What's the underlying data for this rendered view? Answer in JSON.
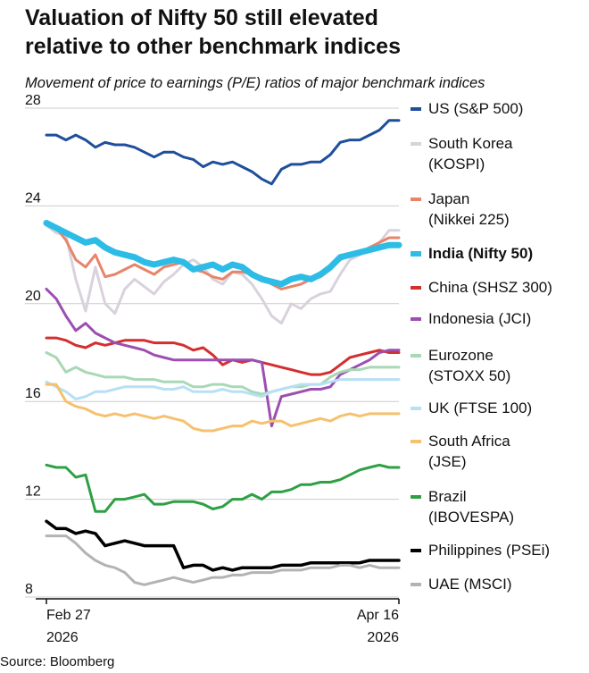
{
  "header": {
    "title_line1": "Valuation of Nifty 50 still elevated",
    "title_line2": "relative to other benchmark indices",
    "subtitle": "Movement of price to earnings (P/E) ratios of major benchmark indices"
  },
  "footer": {
    "source": "Source: Bloomberg"
  },
  "chart_data": {
    "type": "line",
    "title": "Valuation of Nifty 50 still elevated relative to other benchmark indices",
    "subtitle": "Movement of price to earnings (P/E) ratios of major benchmark indices",
    "xlabel": "",
    "ylabel": "",
    "ylim": [
      8,
      28
    ],
    "yticks": [
      8,
      12,
      16,
      20,
      24,
      28
    ],
    "grid": "horizontal",
    "x_tick_labels": [
      {
        "line1": "Feb 27",
        "line2": "2026"
      },
      {
        "line1": "Apr 16",
        "line2": "2026"
      }
    ],
    "legend_position": "right",
    "source": "Source: Bloomberg",
    "series": [
      {
        "name": "US (S&P 500)",
        "legend_lines": [
          "US (S&P 500)"
        ],
        "color": "#1f4e9c",
        "width": 3,
        "bold": false,
        "values": [
          26.9,
          26.9,
          26.7,
          26.9,
          26.7,
          26.4,
          26.6,
          26.5,
          26.5,
          26.4,
          26.2,
          26.0,
          26.2,
          26.2,
          26.0,
          25.9,
          25.6,
          25.8,
          25.7,
          25.8,
          25.6,
          25.4,
          25.1,
          24.9,
          25.5,
          25.7,
          25.7,
          25.8,
          25.8,
          26.1,
          26.6,
          26.7,
          26.7,
          26.9,
          27.1,
          27.5,
          27.5
        ]
      },
      {
        "name": "South Korea (KOSPI)",
        "legend_lines": [
          "South Korea",
          "(KOSPI)"
        ],
        "color": "#d9d2dc",
        "width": 3,
        "bold": false,
        "values": [
          23.2,
          22.9,
          22.8,
          21.0,
          19.7,
          21.5,
          20.0,
          19.6,
          20.6,
          21.0,
          20.7,
          20.4,
          20.9,
          21.2,
          21.6,
          21.8,
          21.5,
          21.0,
          20.8,
          21.3,
          21.2,
          20.8,
          20.2,
          19.5,
          19.2,
          20.0,
          19.8,
          20.2,
          20.4,
          20.5,
          21.2,
          21.8,
          22.0,
          22.2,
          22.5,
          23.0,
          23.0
        ]
      },
      {
        "name": "Japan (Nikkei 225)",
        "legend_lines": [
          "Japan",
          "(Nikkei 225)"
        ],
        "color": "#e8846a",
        "width": 3,
        "bold": false,
        "values": [
          23.3,
          23.1,
          22.6,
          21.8,
          21.5,
          22.0,
          21.1,
          21.2,
          21.4,
          21.6,
          21.4,
          21.2,
          21.5,
          21.6,
          21.7,
          21.4,
          21.3,
          21.1,
          21.0,
          21.3,
          21.3,
          21.2,
          21.1,
          20.8,
          20.6,
          20.7,
          20.8,
          21.0,
          21.1,
          21.4,
          21.8,
          22.0,
          22.1,
          22.3,
          22.5,
          22.7,
          22.7
        ]
      },
      {
        "name": "India (Nifty 50)",
        "legend_lines": [
          "India (Nifty 50)"
        ],
        "color": "#2cbce6",
        "width": 7,
        "bold": true,
        "values": [
          23.3,
          23.1,
          22.9,
          22.7,
          22.5,
          22.6,
          22.3,
          22.1,
          22.0,
          21.9,
          21.7,
          21.6,
          21.7,
          21.8,
          21.7,
          21.4,
          21.5,
          21.6,
          21.4,
          21.6,
          21.5,
          21.2,
          21.0,
          20.9,
          20.8,
          21.0,
          21.1,
          21.0,
          21.2,
          21.5,
          21.9,
          22.0,
          22.1,
          22.2,
          22.3,
          22.4,
          22.4
        ]
      },
      {
        "name": "China (SHSZ 300)",
        "legend_lines": [
          "China (SHSZ 300)"
        ],
        "color": "#d32f2f",
        "width": 3,
        "bold": false,
        "values": [
          18.6,
          18.6,
          18.5,
          18.3,
          18.2,
          18.4,
          18.3,
          18.4,
          18.5,
          18.5,
          18.5,
          18.4,
          18.4,
          18.4,
          18.3,
          18.1,
          18.2,
          17.9,
          17.5,
          17.7,
          17.6,
          17.7,
          17.6,
          17.5,
          17.4,
          17.3,
          17.2,
          17.1,
          17.1,
          17.2,
          17.5,
          17.8,
          17.9,
          18.0,
          18.1,
          18.0,
          18.0
        ]
      },
      {
        "name": "Indonesia (JCI)",
        "legend_lines": [
          "Indonesia (JCI)"
        ],
        "color": "#9c4fb0",
        "width": 3,
        "bold": false,
        "values": [
          20.6,
          20.2,
          19.5,
          18.9,
          19.2,
          18.8,
          18.6,
          18.4,
          18.3,
          18.2,
          18.1,
          17.9,
          17.8,
          17.7,
          17.7,
          17.7,
          17.7,
          17.7,
          17.7,
          17.7,
          17.7,
          17.7,
          17.6,
          15.0,
          16.2,
          16.3,
          16.4,
          16.5,
          16.5,
          16.6,
          17.1,
          17.3,
          17.5,
          17.7,
          18.0,
          18.1,
          18.1
        ]
      },
      {
        "name": "Eurozone (STOXX 50)",
        "legend_lines": [
          "Eurozone",
          "(STOXX 50)"
        ],
        "color": "#a8d8b5",
        "width": 3,
        "bold": false,
        "values": [
          18.0,
          17.8,
          17.2,
          17.4,
          17.2,
          17.1,
          17.0,
          17.0,
          17.0,
          16.9,
          16.9,
          16.9,
          16.8,
          16.8,
          16.8,
          16.6,
          16.6,
          16.7,
          16.7,
          16.6,
          16.6,
          16.4,
          16.3,
          16.4,
          16.5,
          16.6,
          16.6,
          16.7,
          16.7,
          17.0,
          17.2,
          17.3,
          17.3,
          17.4,
          17.4,
          17.4,
          17.4
        ]
      },
      {
        "name": "UK (FTSE 100)",
        "legend_lines": [
          "UK (FTSE 100)"
        ],
        "color": "#b7e0f5",
        "width": 3,
        "bold": false,
        "values": [
          16.8,
          16.6,
          16.4,
          16.1,
          16.2,
          16.4,
          16.4,
          16.5,
          16.6,
          16.6,
          16.6,
          16.6,
          16.5,
          16.5,
          16.6,
          16.4,
          16.4,
          16.4,
          16.5,
          16.4,
          16.4,
          16.3,
          16.2,
          16.4,
          16.5,
          16.6,
          16.7,
          16.7,
          16.7,
          16.8,
          16.9,
          16.9,
          16.9,
          16.9,
          16.9,
          16.9,
          16.9
        ]
      },
      {
        "name": "South Africa (JSE)",
        "legend_lines": [
          "South Africa",
          "(JSE)"
        ],
        "color": "#f5c16f",
        "width": 3,
        "bold": false,
        "values": [
          16.7,
          16.7,
          16.0,
          15.8,
          15.7,
          15.5,
          15.4,
          15.5,
          15.4,
          15.5,
          15.4,
          15.3,
          15.4,
          15.3,
          15.2,
          14.9,
          14.8,
          14.8,
          14.9,
          15.0,
          15.0,
          15.2,
          15.1,
          15.2,
          15.2,
          15.0,
          15.1,
          15.2,
          15.3,
          15.2,
          15.4,
          15.5,
          15.4,
          15.5,
          15.5,
          15.5,
          15.5
        ]
      },
      {
        "name": "Brazil (IBOVESPA)",
        "legend_lines": [
          "Brazil",
          "(IBOVESPA)"
        ],
        "color": "#2ea043",
        "width": 3,
        "bold": false,
        "values": [
          13.4,
          13.3,
          13.3,
          12.9,
          13.0,
          11.5,
          11.5,
          12.0,
          12.0,
          12.1,
          12.2,
          11.8,
          11.8,
          11.9,
          11.9,
          11.9,
          11.8,
          11.6,
          11.7,
          12.0,
          12.0,
          12.2,
          12.0,
          12.3,
          12.3,
          12.4,
          12.6,
          12.6,
          12.7,
          12.7,
          12.8,
          13.0,
          13.2,
          13.3,
          13.4,
          13.3,
          13.3
        ]
      },
      {
        "name": "Philippines (PSEi)",
        "legend_lines": [
          "Philippines (PSEi)"
        ],
        "color": "#000000",
        "width": 3.5,
        "bold": false,
        "values": [
          11.1,
          10.8,
          10.8,
          10.6,
          10.7,
          10.6,
          10.1,
          10.2,
          10.3,
          10.2,
          10.1,
          10.1,
          10.1,
          10.1,
          9.2,
          9.3,
          9.3,
          9.1,
          9.2,
          9.1,
          9.2,
          9.2,
          9.2,
          9.2,
          9.3,
          9.3,
          9.3,
          9.4,
          9.4,
          9.4,
          9.4,
          9.4,
          9.4,
          9.5,
          9.5,
          9.5,
          9.5
        ]
      },
      {
        "name": "UAE (MSCI)",
        "legend_lines": [
          "UAE (MSCI)"
        ],
        "color": "#b3b3b3",
        "width": 3,
        "bold": false,
        "values": [
          10.5,
          10.5,
          10.5,
          10.2,
          9.8,
          9.5,
          9.3,
          9.2,
          9.0,
          8.6,
          8.5,
          8.6,
          8.7,
          8.8,
          8.7,
          8.6,
          8.7,
          8.8,
          8.8,
          8.9,
          8.9,
          9.0,
          9.0,
          9.0,
          9.1,
          9.1,
          9.1,
          9.2,
          9.2,
          9.2,
          9.3,
          9.3,
          9.2,
          9.3,
          9.2,
          9.2,
          9.2
        ]
      }
    ]
  }
}
